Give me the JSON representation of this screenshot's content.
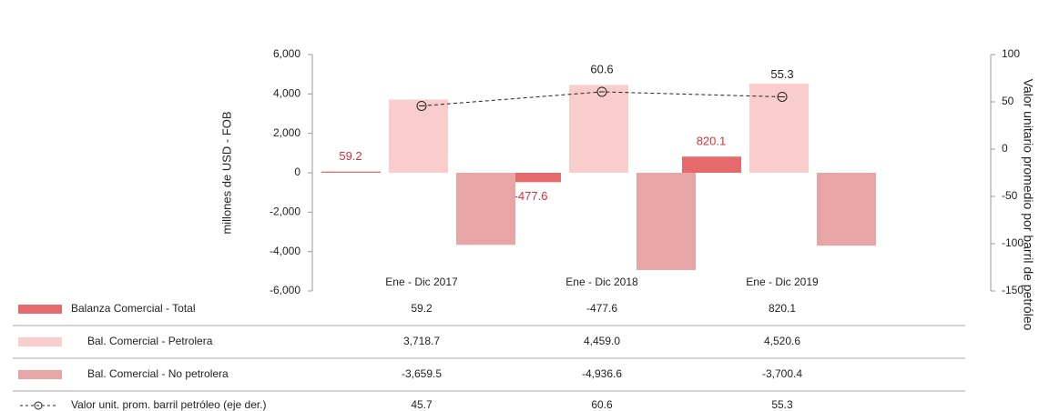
{
  "chart_data": {
    "type": "bar",
    "categories": [
      "Ene - Dic  2017",
      "Ene - Dic  2018",
      "Ene - Dic  2019"
    ],
    "series": [
      {
        "name": "Balanza Comercial - Total",
        "color": "#e46a6c",
        "values": [
          59.2,
          -477.6,
          820.1
        ],
        "value_labels": [
          "59.2",
          "-477.6",
          "820.1"
        ]
      },
      {
        "name": "Bal. Comercial - Petrolera",
        "color": "#f9cdcc",
        "values": [
          3718.7,
          4459.0,
          4520.6
        ],
        "value_labels": [
          "3,718.7",
          "4,459.0",
          "4,520.6"
        ]
      },
      {
        "name": "Bal. Comercial - No petrolera",
        "color": "#e8a5a5",
        "values": [
          -3659.5,
          -4936.6,
          -3700.4
        ],
        "value_labels": [
          "-3,659.5",
          "-4,936.6",
          "-3,700.4"
        ]
      },
      {
        "name": "Valor unit. prom. barril petróleo (eje der.)",
        "type": "line",
        "axis": "y2",
        "color": "#222222",
        "values": [
          45.7,
          60.6,
          55.3
        ]
      }
    ],
    "y_label": "millones de USD - FOB",
    "y2_label": "Valor unitario promedio por barril de petróleo",
    "ylim": [
      -6000,
      6000
    ],
    "yticks": [
      {
        "value": 6000,
        "label": "6,000"
      },
      {
        "value": 4000,
        "label": "4,000"
      },
      {
        "value": 2000,
        "label": "2,000"
      },
      0,
      {
        "value": -2000,
        "label": "-2,000"
      },
      {
        "value": -4000,
        "label": "-4,000"
      },
      {
        "value": -6000,
        "label": "-6,000"
      }
    ],
    "y2lim": [
      -150,
      100
    ],
    "y2ticks": [
      100,
      50,
      0,
      -50,
      -100,
      -150
    ],
    "label_color": "#d8323c"
  }
}
